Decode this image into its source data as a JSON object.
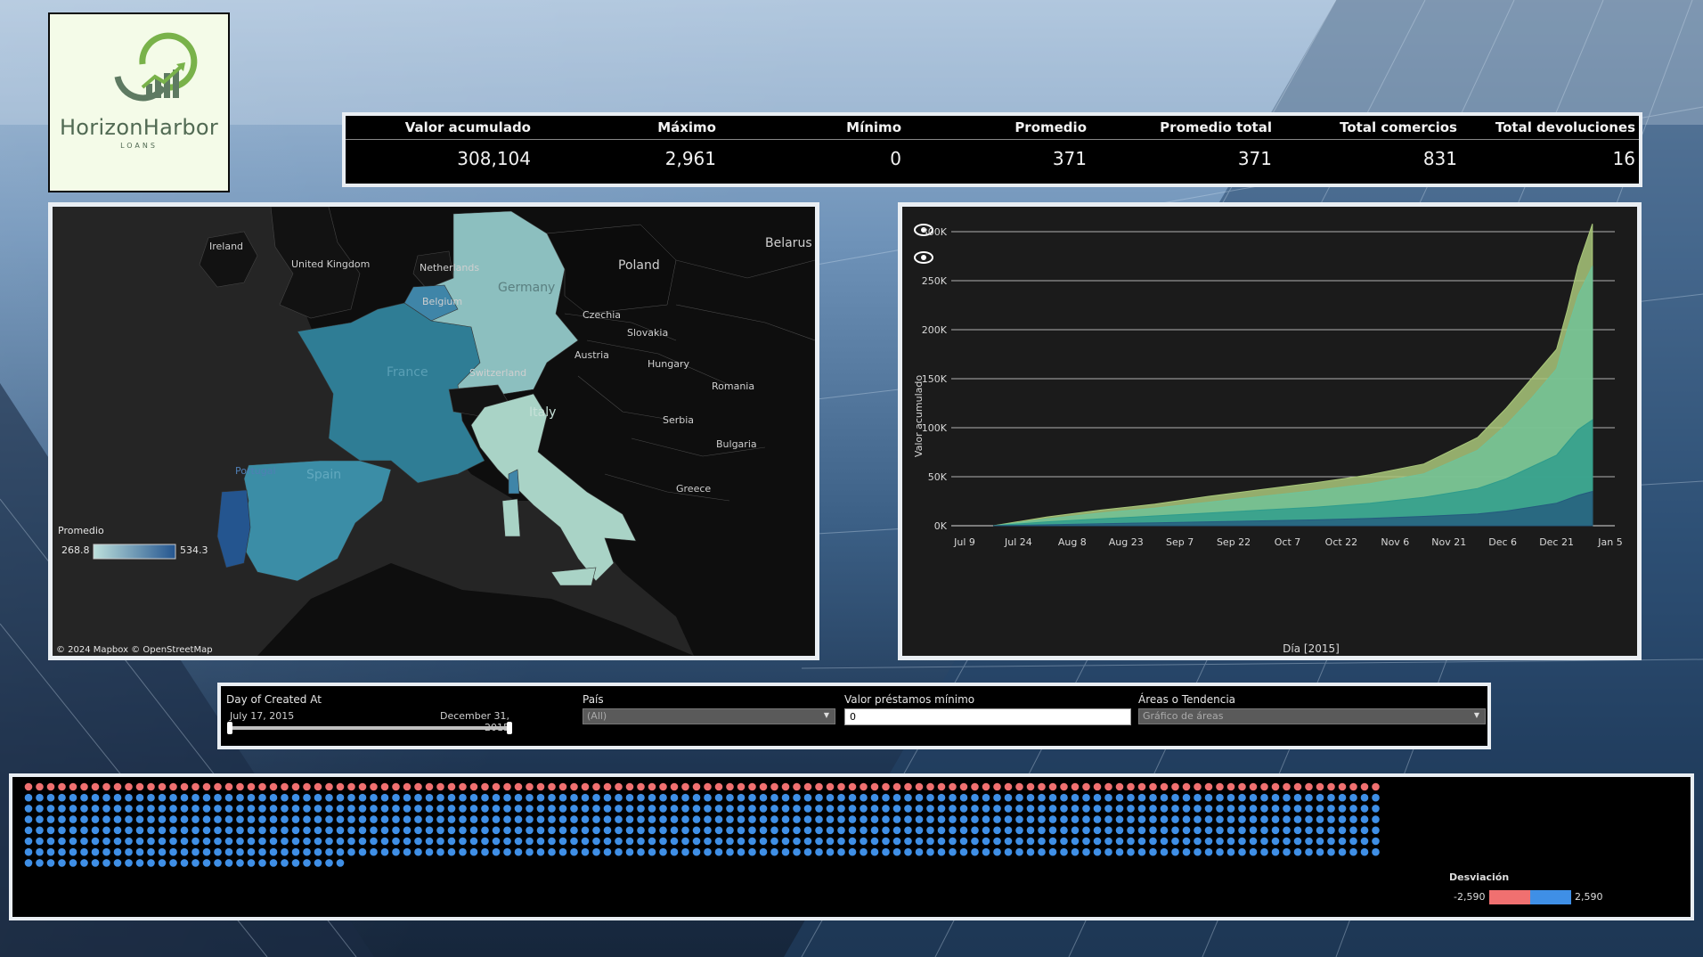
{
  "logo": {
    "brand": "HorizonHarbor",
    "sub": "LOANS"
  },
  "kpis": [
    {
      "label": "Valor acumulado",
      "value": "308,104"
    },
    {
      "label": "Máximo",
      "value": "2,961"
    },
    {
      "label": "Mínimo",
      "value": "0"
    },
    {
      "label": "Promedio",
      "value": "371"
    },
    {
      "label": "Promedio total",
      "value": "371"
    },
    {
      "label": "Total comercios",
      "value": "831"
    },
    {
      "label": "Total devoluciones",
      "value": "16"
    }
  ],
  "map": {
    "countries": [
      "Ireland",
      "United Kingdom",
      "Netherlands",
      "Belgium",
      "Germany",
      "Poland",
      "Belarus",
      "Czechia",
      "Slovakia",
      "Austria",
      "Hungary",
      "Romania",
      "Switzerland",
      "France",
      "Italy",
      "Serbia",
      "Bulgaria",
      "Spain",
      "Portugal",
      "Greece"
    ],
    "legend_title": "Promedio",
    "legend_min": "268.8",
    "legend_max": "534.3",
    "attribution": "© 2024 Mapbox  © OpenStreetMap",
    "color_low": "#bde0dc",
    "color_high": "#24558f"
  },
  "chart_data": {
    "type": "area",
    "xlabel": "Día [2015]",
    "ylabel": "Valor acumulado",
    "x_ticks": [
      "Jul 9",
      "Jul 24",
      "Aug 8",
      "Aug 23",
      "Sep 7",
      "Sep 22",
      "Oct 7",
      "Oct 22",
      "Nov 6",
      "Nov 21",
      "Dec 6",
      "Dec 21",
      "Jan 5"
    ],
    "y_ticks": [
      "0K",
      "50K",
      "100K",
      "150K",
      "200K",
      "250K",
      "300K"
    ],
    "ylim": [
      0,
      300000
    ],
    "x": [
      "Jul 17",
      "Aug 1",
      "Aug 16",
      "Aug 31",
      "Sep 15",
      "Sep 30",
      "Oct 15",
      "Oct 30",
      "Nov 14",
      "Nov 29",
      "Dec 7",
      "Dec 14",
      "Dec 21",
      "Dec 24",
      "Dec 27",
      "Dec 31"
    ],
    "series": [
      {
        "color": "#a9c77a",
        "values": [
          0,
          9000,
          16000,
          22000,
          30000,
          37000,
          44000,
          52000,
          63000,
          90000,
          120000,
          150000,
          180000,
          220000,
          265000,
          308000
        ]
      },
      {
        "color": "#6fc39a",
        "values": [
          0,
          7000,
          13000,
          18000,
          24000,
          30000,
          36000,
          43000,
          53000,
          77000,
          103000,
          130000,
          160000,
          200000,
          235000,
          265000
        ]
      },
      {
        "color": "#2d9c8c",
        "values": [
          0,
          4000,
          7000,
          10000,
          13000,
          16000,
          19000,
          23000,
          29000,
          38000,
          48000,
          60000,
          72000,
          85000,
          98000,
          108000
        ]
      },
      {
        "color": "#245a7e",
        "values": [
          0,
          1000,
          2000,
          3000,
          4000,
          5000,
          6000,
          7500,
          9500,
          12000,
          15000,
          19000,
          23000,
          27000,
          31000,
          35000
        ]
      }
    ]
  },
  "filters": {
    "date": {
      "label": "Day of Created At",
      "start": "July 17, 2015",
      "end": "December 31, 2015"
    },
    "country": {
      "label": "País",
      "value": "(All)"
    },
    "min_loan": {
      "label": "Valor préstamos mínimo",
      "value": "0"
    },
    "view": {
      "label": "Áreas o Tendencia",
      "value": "Gráfico de áreas"
    }
  },
  "deviation": {
    "legend_title": "Desviación",
    "min": "-2,590",
    "max": "2,590",
    "negative_color": "#f07070",
    "positive_color": "#3f8fe6",
    "rows": [
      {
        "cols": 122,
        "negative": 122
      },
      {
        "cols": 122,
        "negative": 0
      },
      {
        "cols": 122,
        "negative": 0
      },
      {
        "cols": 122,
        "negative": 0
      },
      {
        "cols": 122,
        "negative": 0
      },
      {
        "cols": 122,
        "negative": 0
      },
      {
        "cols": 122,
        "negative": 0
      },
      {
        "cols": 29,
        "negative": 0
      }
    ]
  }
}
